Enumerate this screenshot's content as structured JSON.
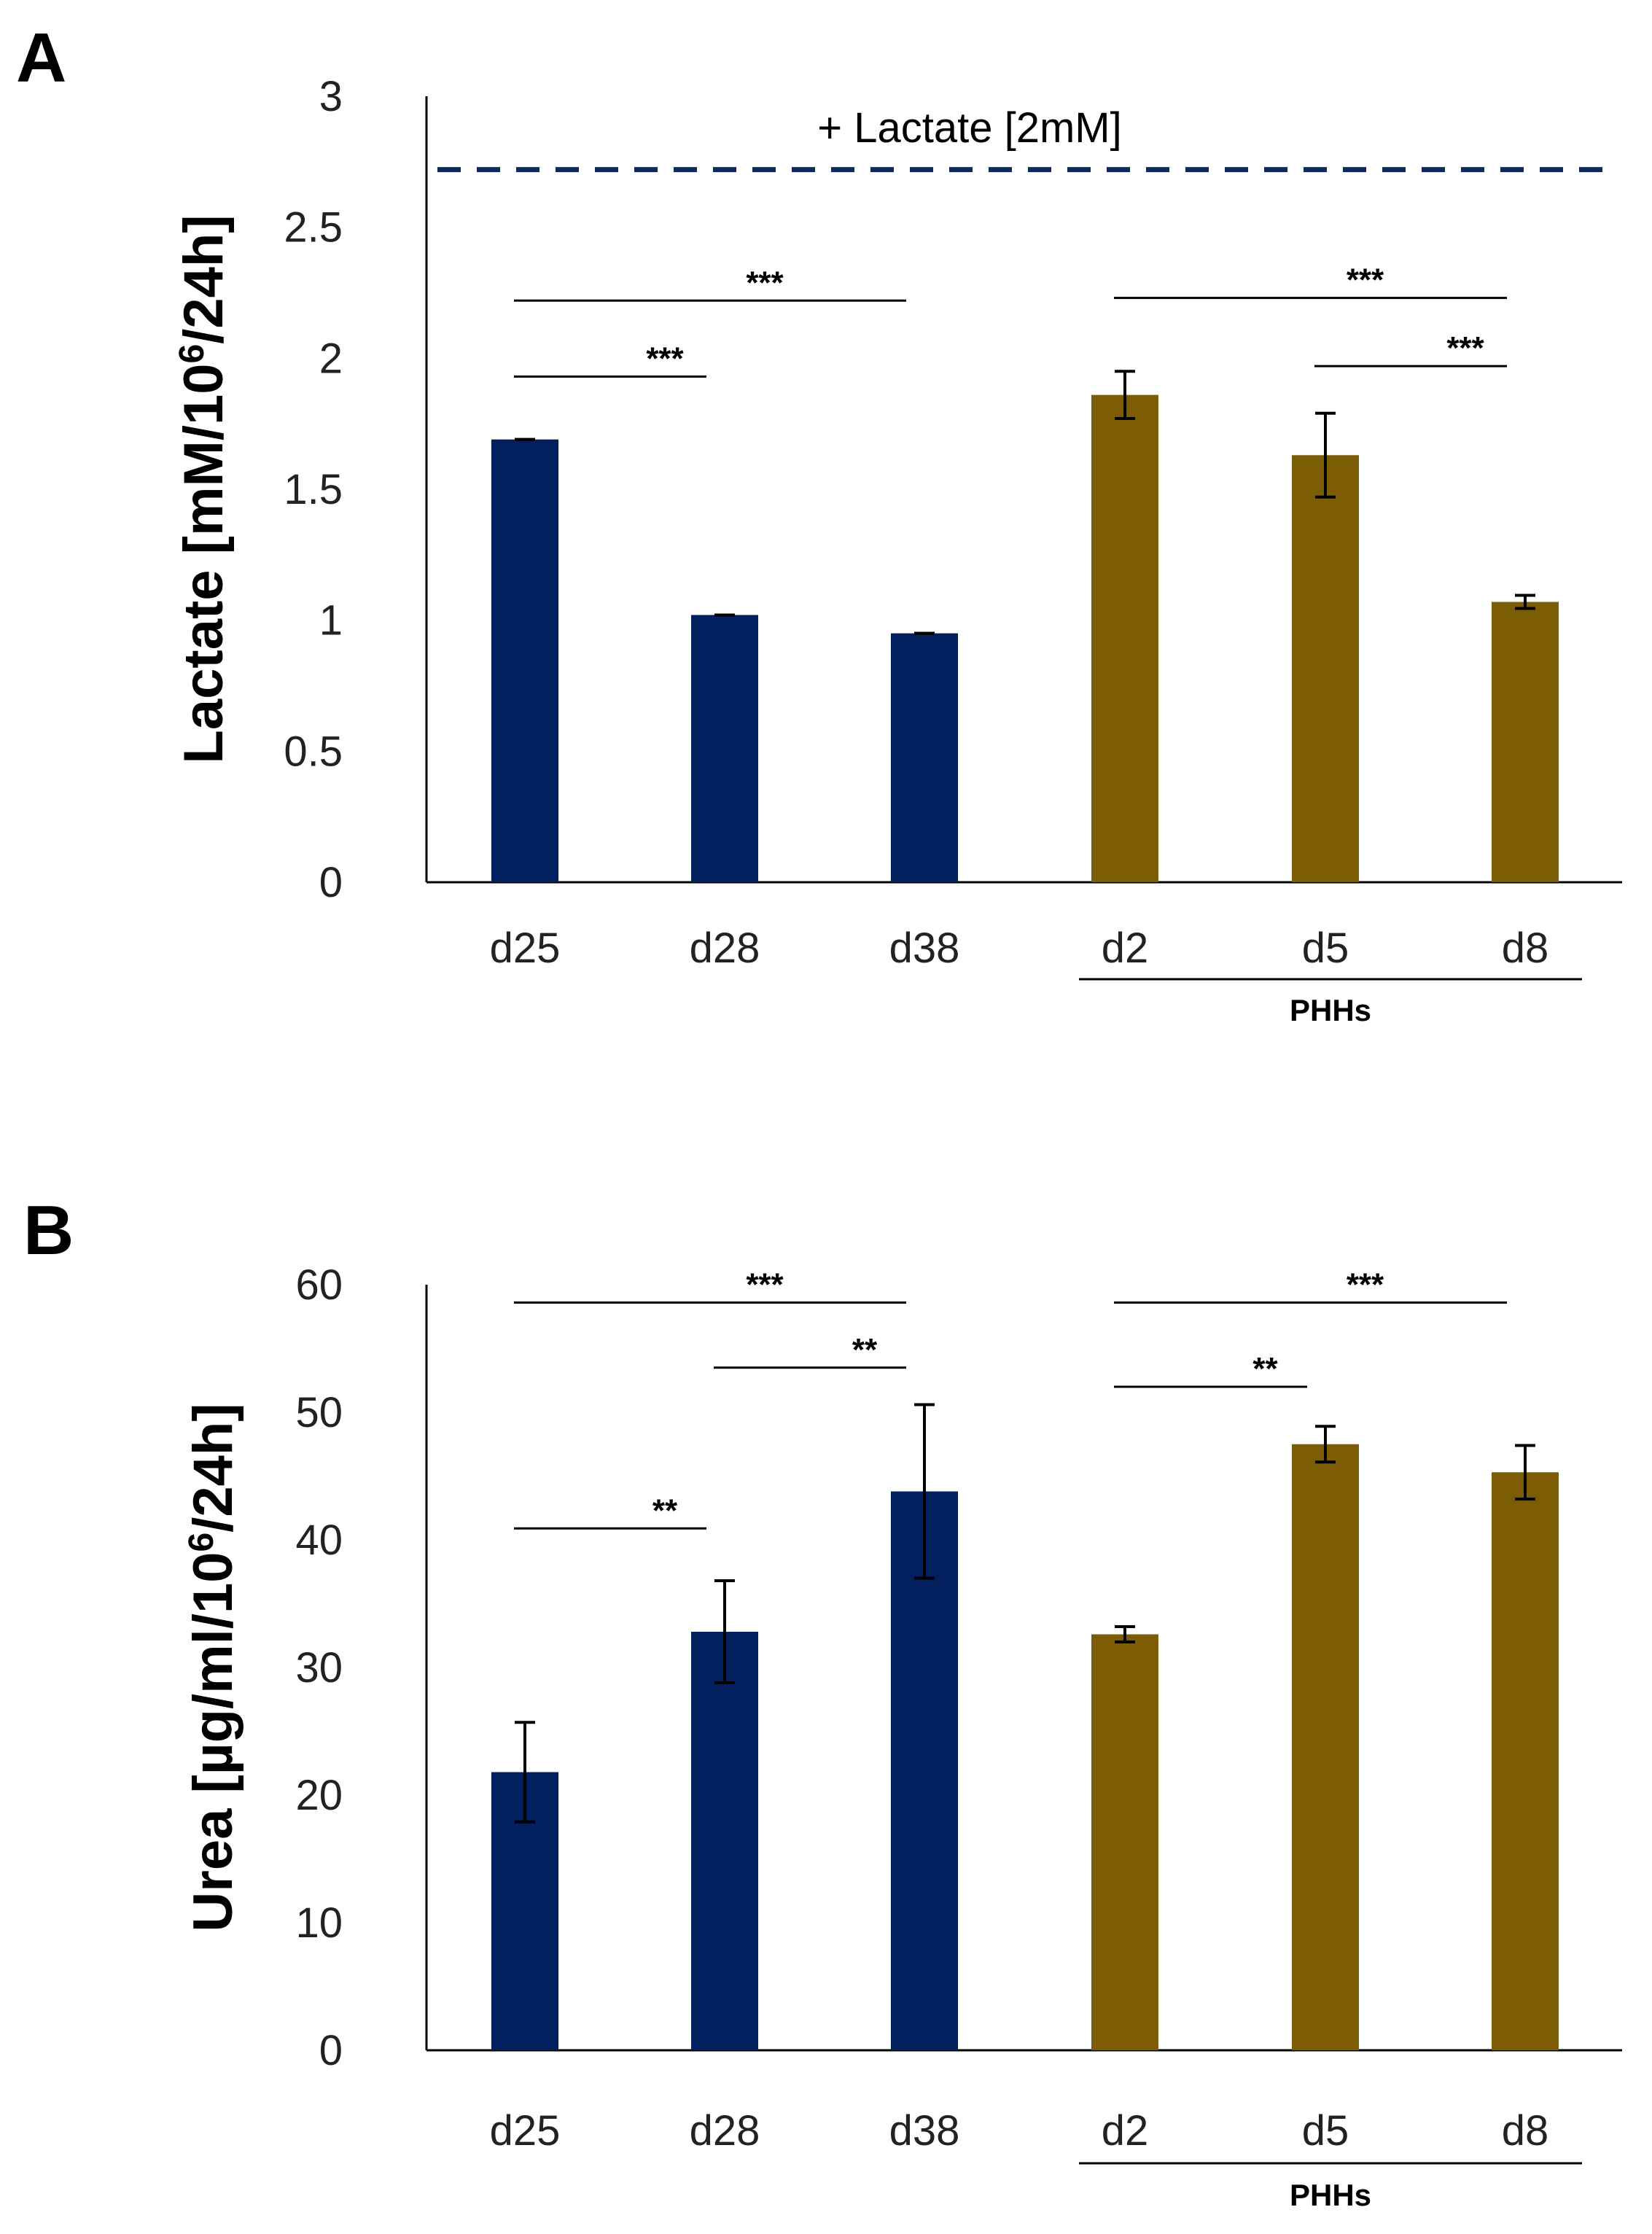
{
  "colors": {
    "ipsc": "#02205E",
    "phh": "#7C5D05",
    "ref_line": "#0B2A5F",
    "axis": "#000000"
  },
  "chart_data": [
    {
      "panel": "A",
      "type": "bar",
      "ylabel": "Lactate [mM/10",
      "ylabel_sup": "6",
      "ylabel_tail": "/24h]",
      "ylim": [
        0,
        3
      ],
      "yticks": [
        0,
        0.5,
        1,
        1.5,
        2,
        2.5,
        3
      ],
      "ytick_labels": [
        "0",
        "0.5",
        "1",
        "1.5",
        "2",
        "2.5",
        "3"
      ],
      "categories": [
        "d25",
        "d28",
        "d38",
        "d2",
        "d5",
        "d8"
      ],
      "values": [
        1.69,
        1.02,
        0.95,
        1.86,
        1.63,
        1.07
      ],
      "errors": [
        0.0,
        0.0,
        0.0,
        0.09,
        0.16,
        0.025
      ],
      "groups": [
        "ipsc",
        "ipsc",
        "ipsc",
        "phh",
        "phh",
        "phh"
      ],
      "group_label": "PHHs",
      "reference_line": {
        "value": 2.72,
        "label": "+ Lactate [2mM]"
      },
      "significance": [
        {
          "from": 0,
          "to": 2,
          "y": 2.22,
          "label": "***"
        },
        {
          "from": 0,
          "to": 1,
          "y": 1.93,
          "label": "***"
        },
        {
          "from": 3,
          "to": 5,
          "y": 2.23,
          "label": "***"
        },
        {
          "from": 4,
          "to": 5,
          "y": 1.97,
          "label": "***"
        }
      ]
    },
    {
      "panel": "B",
      "type": "bar",
      "ylabel": "Urea [µg/ml/10",
      "ylabel_sup": "6",
      "ylabel_tail": "/24h]",
      "ylim": [
        0,
        60
      ],
      "yticks": [
        0,
        10,
        20,
        30,
        40,
        50,
        60
      ],
      "ytick_labels": [
        "0",
        "10",
        "20",
        "30",
        "40",
        "50",
        "60"
      ],
      "categories": [
        "d25",
        "d28",
        "d38",
        "d2",
        "d5",
        "d8"
      ],
      "values": [
        21.8,
        32.8,
        43.8,
        32.6,
        47.5,
        45.3
      ],
      "errors": [
        3.9,
        4.0,
        6.8,
        0.6,
        1.4,
        2.1
      ],
      "groups": [
        "ipsc",
        "ipsc",
        "ipsc",
        "phh",
        "phh",
        "phh"
      ],
      "group_label": "PHHs",
      "significance": [
        {
          "from": 0,
          "to": 2,
          "y": 58.6,
          "label": "***"
        },
        {
          "from": 1,
          "to": 2,
          "y": 53.5,
          "label": "**"
        },
        {
          "from": 0,
          "to": 1,
          "y": 40.9,
          "label": "**"
        },
        {
          "from": 3,
          "to": 5,
          "y": 58.6,
          "label": "***"
        },
        {
          "from": 3,
          "to": 4,
          "y": 52.0,
          "label": "**"
        }
      ]
    }
  ]
}
